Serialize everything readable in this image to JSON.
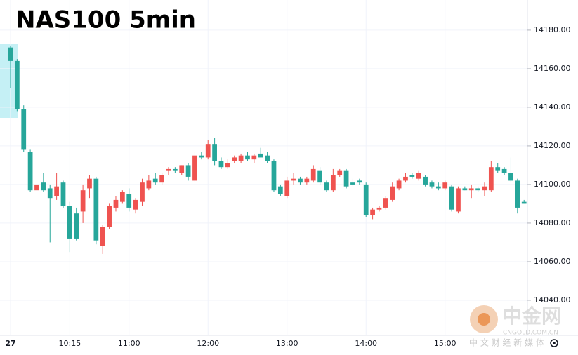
{
  "chart_data": {
    "type": "candlestick",
    "title": "NAS100 5min",
    "up_color": "#ef5350",
    "down_color": "#26a69a",
    "grid": true,
    "watermark": {
      "name": "中金网",
      "site": "CNGOLD.COM.CN",
      "slogan": "中 文 财 经 新 媒 体"
    },
    "categories": [
      "27",
      null,
      null,
      null,
      null,
      null,
      null,
      null,
      null,
      "10:15",
      null,
      null,
      null,
      null,
      null,
      null,
      null,
      null,
      "11:00",
      null,
      null,
      null,
      null,
      null,
      null,
      null,
      null,
      null,
      null,
      null,
      "12:00",
      null,
      null,
      null,
      null,
      null,
      null,
      null,
      null,
      null,
      null,
      null,
      "13:00",
      null,
      null,
      null,
      null,
      null,
      null,
      null,
      null,
      null,
      null,
      null,
      "14:00",
      null,
      null,
      null,
      null,
      null,
      null,
      null,
      null,
      null,
      null,
      null,
      "15:00",
      null,
      null,
      null,
      null,
      null,
      null,
      null,
      null,
      null,
      null,
      null,
      null
    ],
    "open": [
      14171,
      14164,
      14139,
      14117,
      14097,
      14101,
      14098,
      14094,
      14101,
      14089,
      14085,
      14086,
      14098,
      14103,
      14068,
      14078,
      14088,
      14091,
      14095,
      14087,
      14091,
      14098,
      14103,
      14101,
      14107,
      14108,
      14106,
      14110,
      14102,
      14115,
      14114,
      14121,
      14112,
      14109,
      14112,
      14112,
      14115,
      14113,
      14116,
      14115,
      14112,
      14099,
      14094,
      14102,
      14103,
      14101,
      14102,
      14107,
      14101,
      14097,
      14105,
      14107,
      14101,
      14102,
      14100,
      14084,
      14087,
      14088,
      14092,
      14098,
      14102,
      14105,
      14103,
      14104,
      14101,
      14099,
      14098,
      14099,
      14086,
      14098,
      14097,
      14098,
      14097,
      14097,
      14109,
      14108,
      14106,
      14102,
      14091
    ],
    "high": [
      14172,
      14165,
      14141,
      14118,
      14101,
      14106,
      14100,
      14106,
      14102,
      14091,
      14088,
      14100,
      14105,
      14104,
      14079,
      14090,
      14094,
      14097,
      14098,
      14093,
      14103,
      14105,
      14106,
      14106,
      14109,
      14109,
      14110,
      14111,
      14117,
      14117,
      14123,
      14124,
      14114,
      14113,
      14115,
      14116,
      14117,
      14116,
      14119,
      14117,
      14113,
      14100,
      14104,
      14106,
      14104,
      14104,
      14110,
      14109,
      14102,
      14108,
      14108,
      14108,
      14103,
      14103,
      14101,
      14088,
      14089,
      14094,
      14101,
      14103,
      14106,
      14106,
      14107,
      14105,
      14102,
      14101,
      14102,
      14100,
      14099,
      14099,
      14100,
      14099,
      14101,
      14112,
      14111,
      14109,
      14114,
      14103,
      14092
    ],
    "low": [
      14150,
      14138,
      14117,
      14096,
      14083,
      14096,
      14070,
      14092,
      14088,
      14065,
      14071,
      14080,
      14093,
      14069,
      14064,
      14077,
      14086,
      14090,
      14086,
      14085,
      14089,
      14097,
      14100,
      14100,
      14105,
      14106,
      14105,
      14102,
      14101,
      14113,
      14113,
      14110,
      14108,
      14108,
      14111,
      14111,
      14112,
      14111,
      14114,
      14111,
      14096,
      14094,
      14093,
      14100,
      14100,
      14100,
      14101,
      14100,
      14096,
      14096,
      14104,
      14098,
      14099,
      14100,
      14083,
      14082,
      14086,
      14087,
      14091,
      14097,
      14101,
      14103,
      14102,
      14099,
      14098,
      14097,
      14097,
      14086,
      14085,
      14097,
      14093,
      14096,
      14094,
      14096,
      14106,
      14105,
      14101,
      14085,
      14090
    ],
    "close": [
      14164,
      14139,
      14118,
      14097,
      14100,
      14097,
      14093,
      14099,
      14089,
      14072,
      14072,
      14097,
      14103,
      14071,
      14078,
      14089,
      14092,
      14096,
      14088,
      14092,
      14101,
      14102,
      14101,
      14105,
      14108,
      14107,
      14110,
      14104,
      14115,
      14114,
      14121,
      14112,
      14109,
      14111,
      14114,
      14115,
      14113,
      14115,
      14114,
      14112,
      14097,
      14095,
      14102,
      14103,
      14101,
      14103,
      14108,
      14101,
      14097,
      14105,
      14107,
      14099,
      14100,
      14101,
      14084,
      14087,
      14088,
      14093,
      14099,
      14102,
      14104,
      14104,
      14106,
      14100,
      14099,
      14098,
      14101,
      14087,
      14098,
      14097,
      14098,
      14097,
      14099,
      14109,
      14107,
      14106,
      14102,
      14088,
      14090
    ],
    "ylim": [
      14021.8,
      14195.6
    ],
    "yticks": [
      {
        "value": 14040,
        "label": "14040.00"
      },
      {
        "value": 14060,
        "label": "14060.00"
      },
      {
        "value": 14080,
        "label": "14080.00"
      },
      {
        "value": 14100,
        "label": "14100.00"
      },
      {
        "value": 14120,
        "label": "14120.00"
      },
      {
        "value": 14140,
        "label": "14140.00"
      },
      {
        "value": 14160,
        "label": "14160.00"
      },
      {
        "value": 14180,
        "label": "14180.00"
      }
    ]
  }
}
